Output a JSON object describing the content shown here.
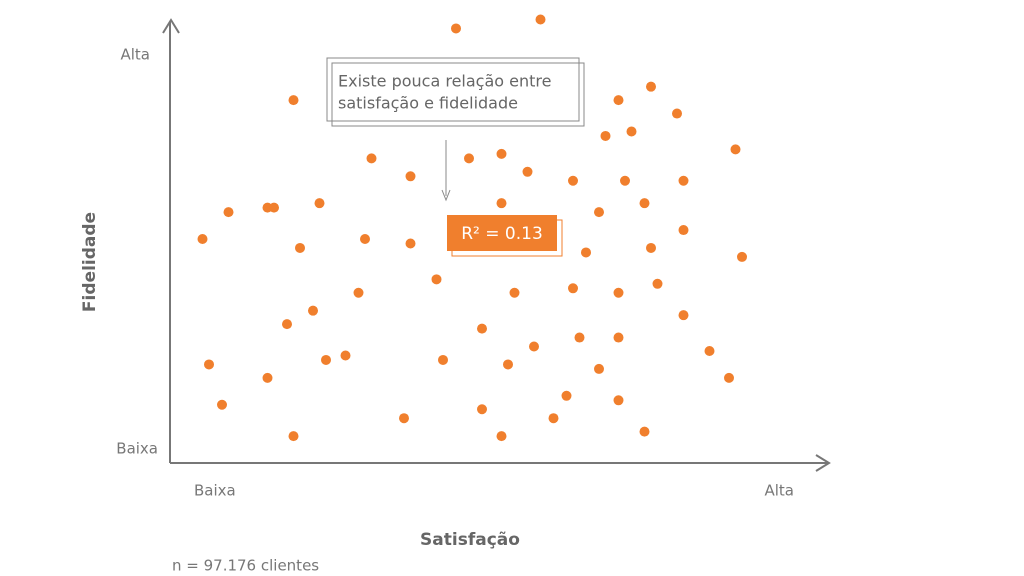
{
  "chart_data": {
    "type": "scatter",
    "xlabel": "Satisfação",
    "ylabel": "Fidelidade",
    "x_axis_labels": [
      "Baixa",
      "Alta"
    ],
    "y_axis_labels": [
      "Baixa",
      "Alta"
    ],
    "annotation": [
      "Existe pouca relação entre",
      "satisfação e fidelidade"
    ],
    "r2_label": "R² = 0.13",
    "note": "n = 97.176 clientes",
    "color": "#f07f2d",
    "xlim": [
      0,
      100
    ],
    "ylim": [
      0,
      100
    ],
    "x": [
      44,
      57,
      19,
      69,
      74,
      78,
      67,
      71,
      87,
      31,
      46,
      51,
      37,
      55,
      62,
      70,
      79,
      9,
      15,
      16,
      23,
      51,
      66,
      73,
      5,
      20,
      30,
      37,
      79,
      74,
      64,
      88,
      41,
      29,
      53,
      62,
      69,
      75,
      22,
      18,
      48,
      79,
      24,
      27,
      42,
      56,
      63,
      69,
      83,
      6,
      52,
      66,
      15,
      86,
      8,
      48,
      61,
      69,
      36,
      59,
      19,
      51,
      73
    ],
    "y": [
      97,
      99,
      81,
      81,
      84,
      78,
      73,
      74,
      70,
      68,
      68,
      69,
      64,
      65,
      63,
      63,
      63,
      56,
      57,
      57,
      58,
      58,
      56,
      58,
      50,
      48,
      50,
      49,
      52,
      48,
      47,
      46,
      41,
      38,
      38,
      39,
      38,
      40,
      34,
      31,
      30,
      33,
      23,
      24,
      23,
      26,
      28,
      28,
      25,
      22,
      22,
      21,
      19,
      19,
      13,
      12,
      15,
      14,
      10,
      10,
      6,
      6,
      7
    ]
  }
}
